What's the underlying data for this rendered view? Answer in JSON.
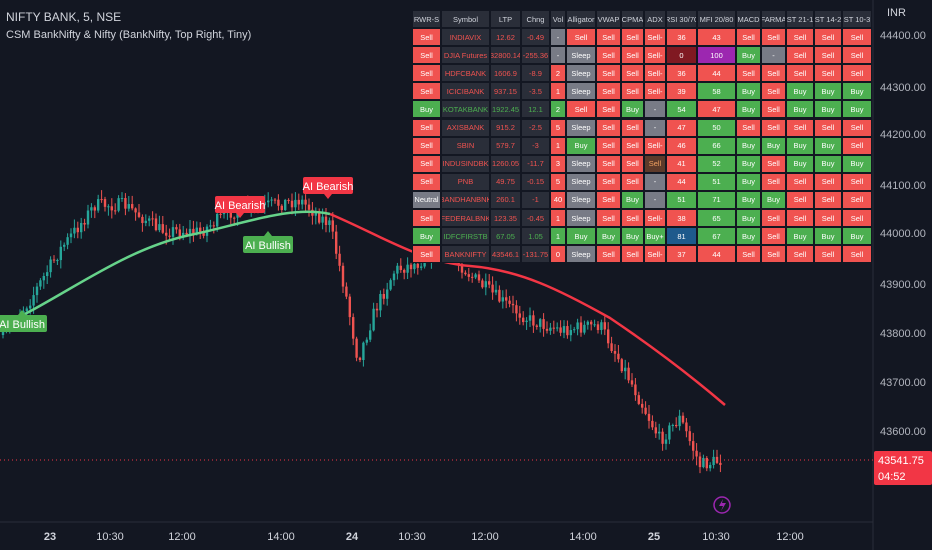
{
  "header": {
    "symbol": "NIFTY BANK, 5, NSE",
    "indicator": "CSM BankNifty & Nifty (BankNifty, Top Right, Tiny)",
    "currency": "INR"
  },
  "price_axis": {
    "ticks": [
      "44400.00",
      "44300.00",
      "44200.00",
      "44100.00",
      "44000.00",
      "43900.00",
      "43800.00",
      "43700.00",
      "43600.00"
    ],
    "last_price": "43541.75",
    "countdown": "04:52"
  },
  "time_axis": {
    "ticks": [
      "23",
      "10:30",
      "12:00",
      "14:00",
      "24",
      "10:30",
      "12:00",
      "14:00",
      "25",
      "10:30",
      "12:00"
    ]
  },
  "annotations": [
    "AI Bearish",
    "AI Bearish",
    "AI Bullish",
    "AI Bullish"
  ],
  "table": {
    "headers": [
      "RWR-S",
      "Symbol",
      "LTP",
      "Chng",
      "Vol",
      "Alligator",
      "VWAP",
      "CPMA",
      "ADX",
      "RSI 30/70",
      "MFI 20/80",
      "MACD",
      "FARMA",
      "ST 21-1",
      "ST 14-2",
      "ST 10-3"
    ],
    "rows": [
      [
        "Sell",
        "INDIAVIX",
        "12.62",
        "-0.49",
        "-",
        "Sell",
        "Sell",
        "Sell",
        "Sell-",
        "36",
        "43",
        "Sell",
        "Sell",
        "Sell",
        "Sell",
        "Sell"
      ],
      [
        "Sell",
        "DJIA Futures",
        "32800.14",
        "-255.36",
        "-",
        "Sleep",
        "Sell",
        "Sell",
        "Sell-",
        "0",
        "100",
        "Buy",
        "-",
        "Sell",
        "Sell",
        "Sell"
      ],
      [
        "Sell",
        "HDFCBANK",
        "1606.9",
        "-8.9",
        "2",
        "Sleep",
        "Sell",
        "Sell",
        "Sell-",
        "36",
        "44",
        "Sell",
        "Sell",
        "Sell",
        "Sell",
        "Sell"
      ],
      [
        "Sell",
        "ICICIBANK",
        "937.15",
        "-3.5",
        "1",
        "Sleep",
        "Sell",
        "Sell",
        "Sell-",
        "39",
        "58",
        "Buy",
        "Sell",
        "Buy",
        "Buy",
        "Buy"
      ],
      [
        "Buy",
        "KOTAKBANK",
        "1922.45",
        "12.1",
        "2",
        "Sell",
        "Sell",
        "Buy",
        "-",
        "54",
        "47",
        "Buy",
        "Sell",
        "Buy",
        "Buy",
        "Buy"
      ],
      [
        "Sell",
        "AXISBANK",
        "915.2",
        "-2.5",
        "5",
        "Sleep",
        "Sell",
        "Sell",
        "-",
        "47",
        "50",
        "Sell",
        "Sell",
        "Sell",
        "Sell",
        "Sell"
      ],
      [
        "Sell",
        "SBIN",
        "579.7",
        "-3",
        "1",
        "Buy",
        "Sell",
        "Sell",
        "Sell-",
        "46",
        "66",
        "Buy",
        "Buy",
        "Buy",
        "Buy",
        "Sell"
      ],
      [
        "Sell",
        "INDUSINDBK",
        "1260.05",
        "-11.7",
        "3",
        "Sleep",
        "Sell",
        "Sell",
        "Sell",
        "41",
        "52",
        "Buy",
        "Sell",
        "Buy",
        "Buy",
        "Buy"
      ],
      [
        "Sell",
        "PNB",
        "49.75",
        "-0.15",
        "5",
        "Sleep",
        "Sell",
        "Sell",
        "-",
        "44",
        "51",
        "Buy",
        "Sell",
        "Sell",
        "Sell",
        "Sell"
      ],
      [
        "Neutral",
        "BANDHANBNK",
        "260.1",
        "-1",
        "40",
        "Sleep",
        "Sell",
        "Buy",
        "-",
        "51",
        "71",
        "Buy",
        "Buy",
        "Sell",
        "Sell",
        "Sell"
      ],
      [
        "Sell",
        "FEDERALBNK",
        "123.35",
        "-0.45",
        "1",
        "Sleep",
        "Sell",
        "Sell",
        "Sell-",
        "38",
        "65",
        "Buy",
        "Sell",
        "Sell",
        "Sell",
        "Sell"
      ],
      [
        "Buy",
        "IDFCFIRSTB",
        "67.05",
        "1.05",
        "1",
        "Buy",
        "Buy",
        "Buy",
        "Buy+",
        "81",
        "67",
        "Buy",
        "Sell",
        "Buy",
        "Buy",
        "Buy"
      ],
      [
        "Sell",
        "BANKNIFTY",
        "43546.1",
        "-131.75",
        "0",
        "Sleep",
        "Sell",
        "Sell",
        "Sell-",
        "37",
        "44",
        "Sell",
        "Sell",
        "Sell",
        "Sell",
        "Sell"
      ]
    ]
  }
}
